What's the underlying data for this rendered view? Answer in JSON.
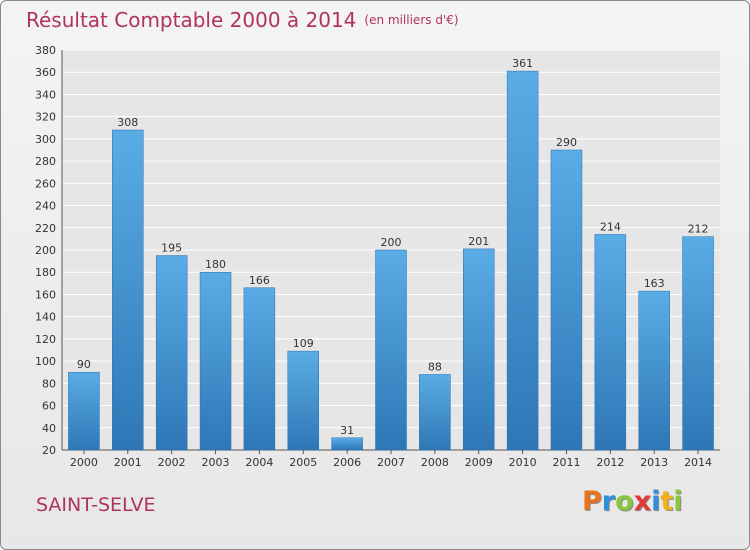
{
  "title": "Résultat Comptable 2000 à 2014",
  "subtitle": "(en milliers d'€)",
  "place": "SAINT-SELVE",
  "logo": {
    "letters": [
      "P",
      "r",
      "o",
      "x",
      "i",
      "t",
      "i"
    ],
    "colors": [
      "#e8721e",
      "#2f8fd8",
      "#8cc63e",
      "#e23a3a",
      "#2f8fd8",
      "#f2b318",
      "#8cc63e"
    ]
  },
  "colors": {
    "bar": "#4d9fde",
    "bar_dark": "#2f78b8",
    "title": "#b0335e",
    "grid": "#ffffff"
  },
  "chart_data": {
    "type": "bar",
    "title": "Résultat Comptable 2000 à 2014",
    "categories": [
      "2000",
      "2001",
      "2002",
      "2003",
      "2004",
      "2005",
      "2006",
      "2007",
      "2008",
      "2009",
      "2010",
      "2011",
      "2012",
      "2013",
      "2014"
    ],
    "values": [
      90,
      308,
      195,
      180,
      166,
      109,
      31,
      200,
      88,
      201,
      361,
      290,
      214,
      163,
      212
    ],
    "ylim": [
      20,
      380
    ],
    "yticks": [
      20,
      40,
      60,
      80,
      100,
      120,
      140,
      160,
      180,
      200,
      220,
      240,
      260,
      280,
      300,
      320,
      340,
      360,
      380
    ],
    "grid": true,
    "legend": "none",
    "data_labels": true
  }
}
